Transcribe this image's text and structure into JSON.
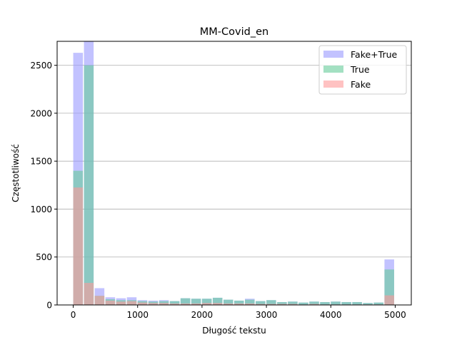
{
  "chart_data": {
    "type": "bar",
    "title": "MM-Covid_en",
    "xlabel": "Długość tekstu",
    "ylabel": "Częstotliwość",
    "xlim": [
      -250,
      5250
    ],
    "ylim": [
      0,
      2750
    ],
    "xticks": [
      0,
      1000,
      2000,
      3000,
      4000,
      5000
    ],
    "yticks": [
      0,
      500,
      1000,
      1500,
      2000,
      2500
    ],
    "grid": "horizontal",
    "legend_position": "top-right",
    "bin_width": 166.7,
    "bin_starts": [
      0,
      166.7,
      333.3,
      500,
      666.7,
      833.3,
      1000,
      1166.7,
      1333.3,
      1500,
      1666.7,
      1833.3,
      2000,
      2166.7,
      2333.3,
      2500,
      2666.7,
      2833.3,
      3000,
      3166.7,
      3333.3,
      3500,
      3666.7,
      3833.3,
      4000,
      4166.7,
      4333.3,
      4500,
      4666.7,
      4833.3
    ],
    "series": [
      {
        "name": "Fake+True",
        "color": "#9999ff",
        "values": [
          2630,
          2750,
          175,
          80,
          70,
          80,
          50,
          45,
          50,
          40,
          70,
          65,
          65,
          75,
          55,
          45,
          65,
          40,
          50,
          30,
          35,
          25,
          35,
          30,
          35,
          30,
          30,
          20,
          25,
          475
        ]
      },
      {
        "name": "True",
        "color": "#66cc99",
        "values": [
          1400,
          2500,
          95,
          60,
          50,
          50,
          40,
          35,
          40,
          40,
          70,
          65,
          65,
          75,
          55,
          45,
          55,
          40,
          50,
          30,
          35,
          25,
          35,
          30,
          35,
          30,
          30,
          20,
          25,
          370
        ]
      },
      {
        "name": "Fake",
        "color": "#ff9999",
        "values": [
          1225,
          230,
          95,
          45,
          35,
          40,
          25,
          20,
          20,
          15,
          15,
          15,
          20,
          20,
          15,
          15,
          15,
          10,
          10,
          10,
          10,
          5,
          10,
          5,
          5,
          5,
          5,
          5,
          5,
          100
        ]
      }
    ]
  }
}
